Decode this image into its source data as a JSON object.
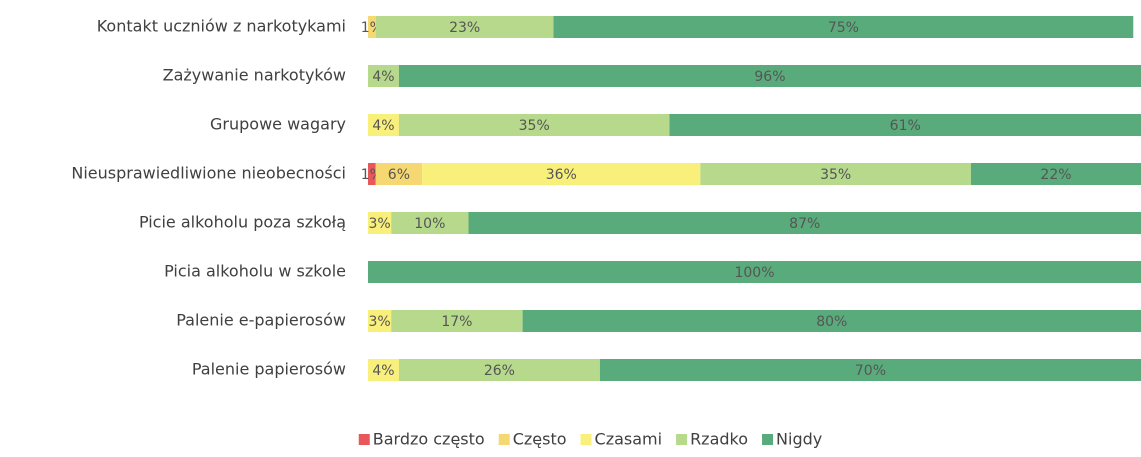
{
  "chart_data": {
    "type": "stacked_barh",
    "categories": [
      "Kontakt uczniów z narkotykami",
      "Zażywanie narkotyków",
      "Grupowe wagary",
      "Nieusprawiedliwione nieobecności",
      "Picie alkoholu poza szkołą",
      "Picia alkoholu w szkole",
      "Palenie e-papierosów",
      "Palenie papierosów"
    ],
    "xlim": [
      0,
      100
    ],
    "series": [
      {
        "name": "Bardzo często",
        "color": "#e8585b",
        "values": [
          null,
          null,
          null,
          1,
          null,
          null,
          null,
          null
        ],
        "value_labels": [
          null,
          null,
          null,
          "1%",
          null,
          null,
          null,
          null
        ]
      },
      {
        "name": "Często",
        "color": "#f6d873",
        "values": [
          1,
          null,
          null,
          6,
          null,
          null,
          null,
          null
        ],
        "value_labels": [
          "1%",
          null,
          null,
          "6%",
          null,
          null,
          null,
          null
        ]
      },
      {
        "name": "Czasami",
        "color": "#f9f07c",
        "values": [
          null,
          null,
          4,
          36,
          3,
          null,
          3,
          4
        ],
        "value_labels": [
          null,
          null,
          "4%",
          "36%",
          "3%",
          null,
          "3%",
          "4%"
        ]
      },
      {
        "name": "Rzadko",
        "color": "#b6d98c",
        "values": [
          23,
          4,
          35,
          35,
          10,
          null,
          17,
          26
        ],
        "value_labels": [
          "23%",
          "4%",
          "35%",
          "35%",
          "10%",
          null,
          "17%",
          "26%"
        ]
      },
      {
        "name": "Nigdy",
        "color": "#5aab7c",
        "values": [
          75,
          96,
          61,
          22,
          87,
          100,
          80,
          70
        ],
        "value_labels": [
          "75%",
          "96%",
          "61%",
          "22%",
          "87%",
          "100%",
          "80%",
          "70%"
        ]
      }
    ],
    "legend": "bottom"
  }
}
